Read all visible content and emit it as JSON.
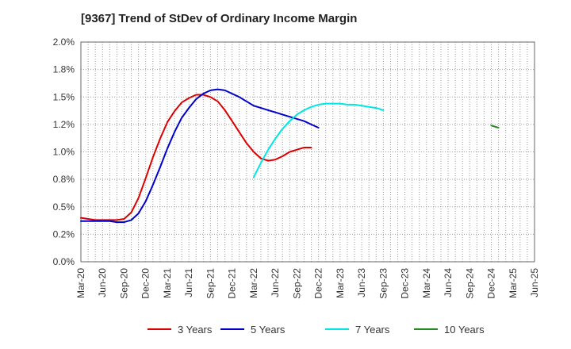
{
  "chart_data": {
    "type": "line",
    "title": "[9367]  Trend of StDev of Ordinary Income Margin",
    "xlabel": "",
    "ylabel": "",
    "x_tick_labels": [
      "Mar-20",
      "Jun-20",
      "Sep-20",
      "Dec-20",
      "Mar-21",
      "Jun-21",
      "Sep-21",
      "Dec-21",
      "Mar-22",
      "Jun-22",
      "Sep-22",
      "Dec-22",
      "Mar-23",
      "Jun-23",
      "Sep-23",
      "Dec-23",
      "Mar-24",
      "Jun-24",
      "Sep-24",
      "Dec-24",
      "Mar-25",
      "Jun-25"
    ],
    "y_ticks": [
      0,
      0.25,
      0.5,
      0.75,
      1.0,
      1.25,
      1.5,
      1.75,
      2.0
    ],
    "y_tick_labels": [
      "0.0%",
      "0.2%",
      "0.5%",
      "0.8%",
      "1.0%",
      "1.2%",
      "1.5%",
      "1.8%",
      "2.0%"
    ],
    "ylim": [
      0,
      2.0
    ],
    "grid": true,
    "legend_position": "bottom",
    "series": [
      {
        "name": "3 Years",
        "color": "#dd0000",
        "values": [
          0.4,
          0.39,
          0.38,
          0.38,
          0.38,
          0.38,
          0.39,
          0.45,
          0.58,
          0.76,
          0.95,
          1.12,
          1.27,
          1.37,
          1.45,
          1.49,
          1.52,
          1.52,
          1.5,
          1.46,
          1.38,
          1.28,
          1.18,
          1.08,
          1.0,
          0.94,
          0.92,
          0.93,
          0.96,
          1.0,
          1.02,
          1.04,
          1.04
        ],
        "x_start": "Mar-20"
      },
      {
        "name": "5 Years",
        "color": "#0000cc",
        "values": [
          0.37,
          0.37,
          0.37,
          0.37,
          0.37,
          0.36,
          0.36,
          0.38,
          0.44,
          0.55,
          0.7,
          0.86,
          1.03,
          1.18,
          1.31,
          1.4,
          1.48,
          1.53,
          1.56,
          1.57,
          1.56,
          1.53,
          1.5,
          1.46,
          1.42,
          1.4,
          1.38,
          1.36,
          1.34,
          1.32,
          1.3,
          1.28,
          1.25,
          1.22
        ],
        "x_start": "Mar-20"
      },
      {
        "name": "7 Years",
        "color": "#00e5e5",
        "values": [
          0.77,
          0.9,
          1.02,
          1.12,
          1.21,
          1.28,
          1.34,
          1.38,
          1.41,
          1.43,
          1.44,
          1.44,
          1.44,
          1.43,
          1.43,
          1.42,
          1.41,
          1.4,
          1.38
        ],
        "x_start": "Mar-22"
      },
      {
        "name": "10 Years",
        "color": "#228b22",
        "values": [
          1.24,
          1.22
        ],
        "x_start": "Dec-24"
      }
    ]
  }
}
